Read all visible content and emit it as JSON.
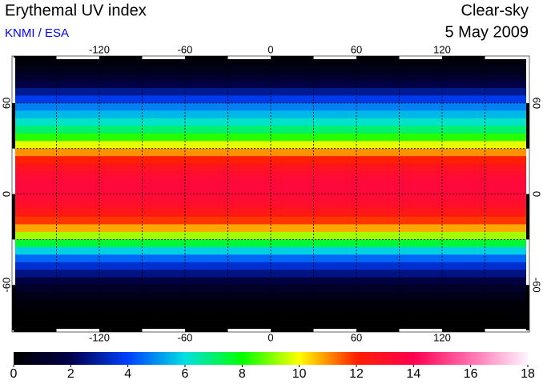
{
  "chart_data": {
    "type": "heatmap",
    "title": "Erythemal UV index",
    "subtitle": "KNMI / ESA",
    "condition": "Clear-sky",
    "date": "5 May 2009",
    "xlim": [
      -180,
      180
    ],
    "ylim": [
      -90,
      90
    ],
    "xticks": [
      -120,
      -60,
      0,
      60,
      120
    ],
    "yticks": [
      -60,
      0,
      60
    ],
    "x_grid": [
      -150,
      -120,
      -90,
      -60,
      -30,
      0,
      30,
      60,
      90,
      120,
      150
    ],
    "y_grid": [
      -60,
      -30,
      0,
      30,
      60
    ],
    "lat": [
      87.5,
      82.5,
      77.5,
      72.5,
      67.5,
      62.5,
      57.5,
      52.5,
      47.5,
      42.5,
      37.5,
      32.5,
      27.5,
      22.5,
      17.5,
      12.5,
      7.5,
      2.5,
      -2.5,
      -7.5,
      -12.5,
      -17.5,
      -22.5,
      -27.5,
      -32.5,
      -37.5,
      -42.5,
      -47.5,
      -52.5,
      -57.5,
      -62.5,
      -67.5,
      -72.5,
      -77.5,
      -82.5,
      -87.5
    ],
    "values": [
      0.3,
      0.6,
      1.2,
      1.8,
      2.8,
      3.8,
      4.8,
      5.5,
      6.2,
      7,
      8.3,
      9.8,
      11,
      12,
      12.8,
      13.2,
      13.5,
      13.5,
      13.3,
      13,
      12.5,
      11.8,
      10.8,
      9.3,
      7.5,
      5.8,
      4.5,
      3.5,
      2.6,
      1.8,
      1.1,
      0.6,
      0.3,
      0.1,
      0,
      0
    ],
    "clim": [
      0,
      18
    ],
    "cticks": [
      0,
      2,
      4,
      6,
      8,
      10,
      12,
      14,
      16,
      18
    ],
    "colormap": [
      "#000000",
      "#00004a",
      "#0040ff",
      "#00e0e0",
      "#00ff00",
      "#ffff00",
      "#ff2000",
      "#ff0050",
      "#ff70b0",
      "#fff4ff"
    ]
  }
}
